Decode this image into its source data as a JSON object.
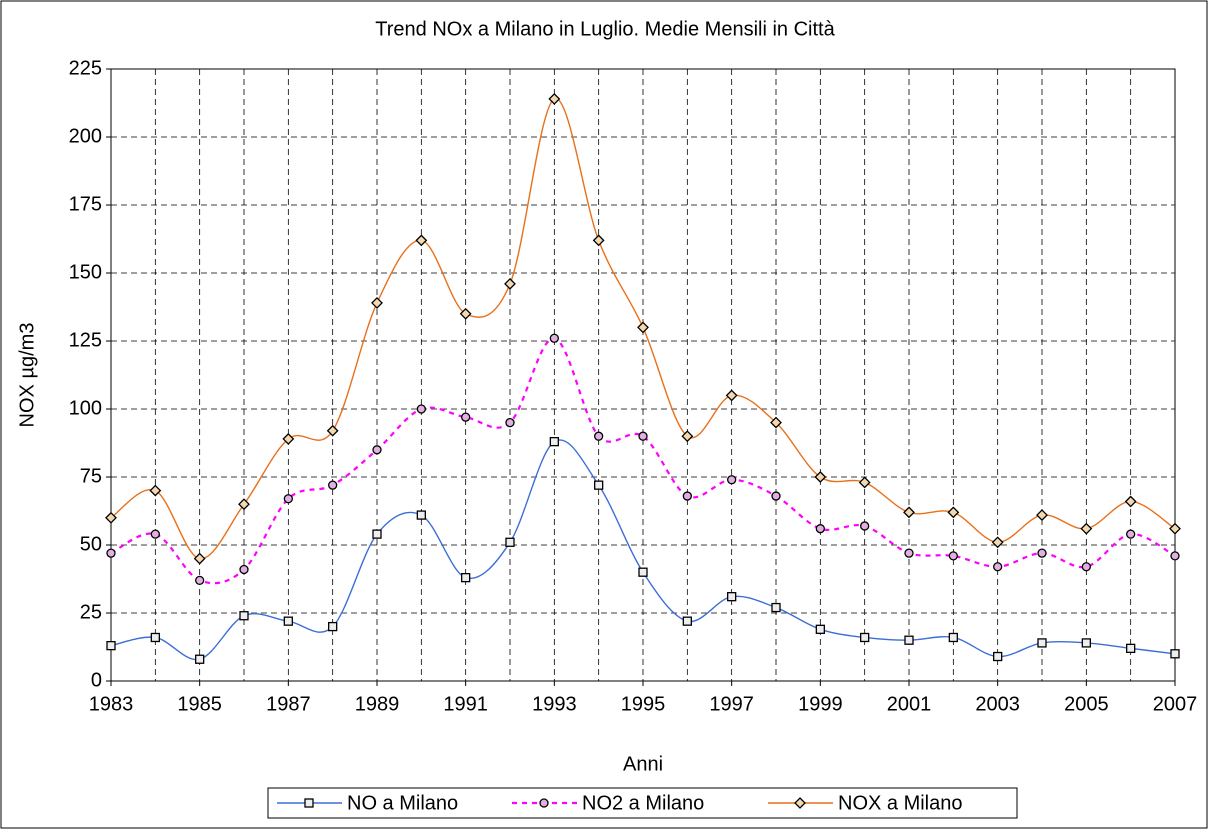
{
  "chart_data": {
    "type": "line",
    "title": "Trend NOx a Milano in Luglio. Medie Mensili in Città",
    "x_label": "Anni",
    "y_label": "NOX µg/m3",
    "x": [
      1983,
      1984,
      1985,
      1986,
      1987,
      1988,
      1989,
      1990,
      1991,
      1992,
      1993,
      1994,
      1995,
      1996,
      1997,
      1998,
      1999,
      2000,
      2001,
      2002,
      2003,
      2004,
      2005,
      2006,
      2007
    ],
    "xlim": [
      1983,
      2007
    ],
    "xticks": [
      1983,
      1985,
      1987,
      1989,
      1991,
      1993,
      1995,
      1997,
      1999,
      2001,
      2003,
      2005,
      2007
    ],
    "ylim": [
      0,
      225
    ],
    "yticks": [
      0,
      25,
      50,
      75,
      100,
      125,
      150,
      175,
      200,
      225
    ],
    "grid": true,
    "legend": "bottom",
    "series": [
      {
        "name": "NO a Milano",
        "color": "#3c6ed8",
        "marker": "square",
        "dash": "solid",
        "values": [
          13,
          16,
          8,
          24,
          22,
          20,
          54,
          61,
          38,
          51,
          88,
          72,
          40,
          22,
          31,
          27,
          19,
          16,
          15,
          16,
          9,
          14,
          14,
          12,
          10
        ]
      },
      {
        "name": "NO2 a Milano",
        "color": "#ff00ff",
        "marker": "circle",
        "dash": "dashed",
        "values": [
          47,
          54,
          37,
          41,
          67,
          72,
          85,
          100,
          97,
          95,
          126,
          90,
          90,
          68,
          74,
          68,
          56,
          57,
          47,
          46,
          42,
          47,
          42,
          54,
          46
        ]
      },
      {
        "name": "NOX a Milano",
        "color": "#e8701a",
        "marker": "diamond",
        "dash": "solid",
        "values": [
          60,
          70,
          45,
          65,
          89,
          92,
          139,
          162,
          135,
          146,
          214,
          162,
          130,
          90,
          105,
          95,
          75,
          73,
          62,
          62,
          51,
          61,
          56,
          66,
          56
        ]
      }
    ]
  }
}
